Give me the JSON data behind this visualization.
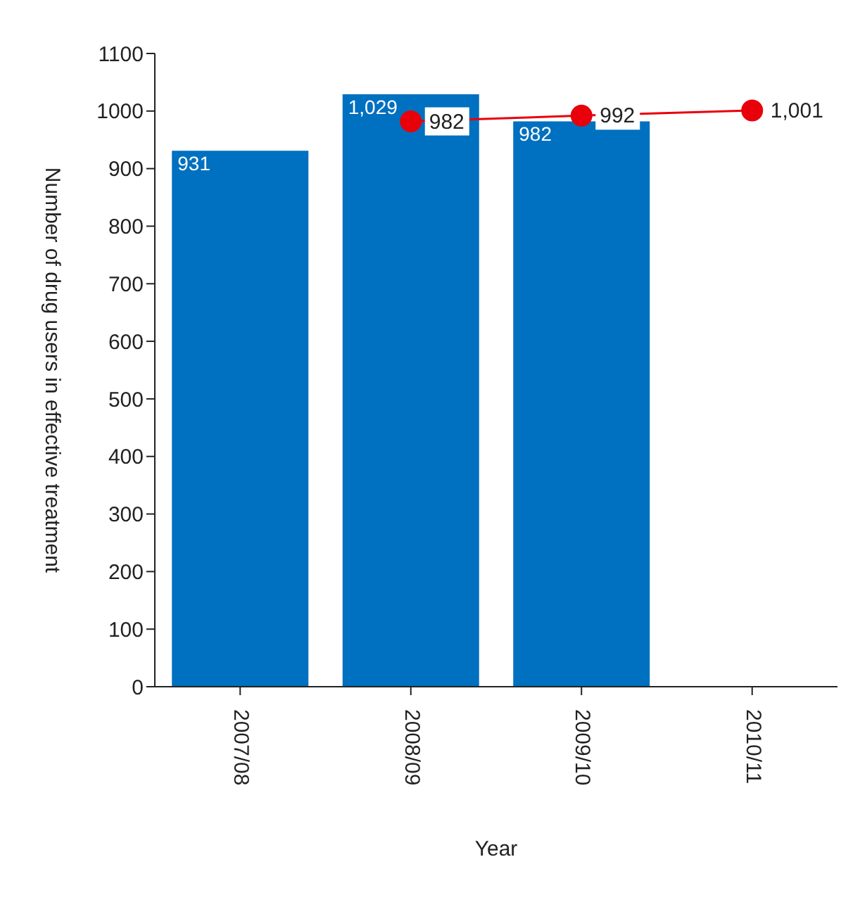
{
  "chart_data": {
    "type": "bar",
    "xlabel": "Year",
    "ylabel": "Number of drug users in effective treatment",
    "categories": [
      "2007/08",
      "2008/09",
      "2009/10",
      "2010/11"
    ],
    "series": [
      {
        "color": "#0070c0",
        "values": [
          931,
          1029,
          982,
          null
        ],
        "value_labels": [
          "931",
          "1,029",
          "982",
          null
        ]
      },
      {
        "type": "line",
        "color": "#e8000b",
        "values": [
          null,
          982,
          992,
          1001
        ],
        "value_labels": [
          null,
          "982",
          "992",
          "1,001"
        ]
      }
    ],
    "ylim": [
      0,
      1100
    ],
    "yticks": [
      0,
      100,
      200,
      300,
      400,
      500,
      600,
      700,
      800,
      900,
      1000,
      1100
    ],
    "grid": false,
    "legend": false,
    "marker": "circle"
  }
}
